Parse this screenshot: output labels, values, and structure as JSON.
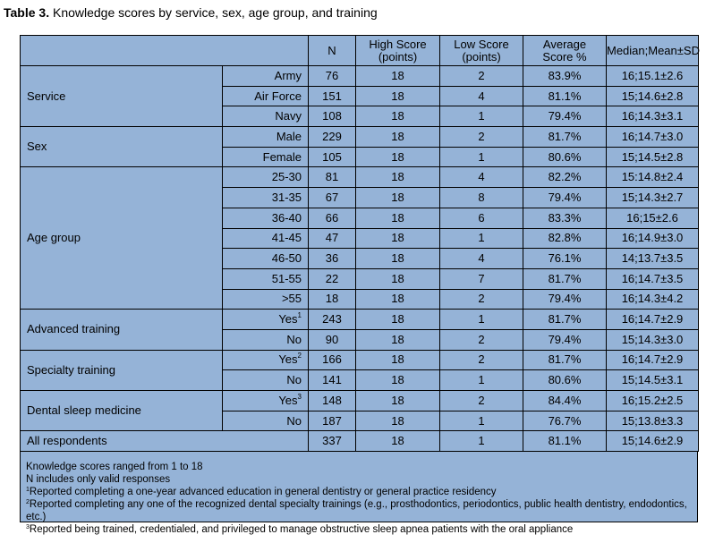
{
  "title": {
    "label": "Table 3.",
    "text": " Knowledge scores by service, sex, age group, and training"
  },
  "headers": {
    "n": "N",
    "high": [
      "High Score",
      "(points)"
    ],
    "low": [
      "Low Score",
      "(points)"
    ],
    "avg": [
      "Average",
      "Score %"
    ],
    "median": "Median;Mean±SD"
  },
  "groups": [
    {
      "name": "Service",
      "rows": [
        {
          "label": "Army",
          "sup": "",
          "n": "76",
          "high": "18",
          "low": "2",
          "avg": "83.9%",
          "median": "16;15.1±2.6"
        },
        {
          "label": "Air Force",
          "sup": "",
          "n": "151",
          "high": "18",
          "low": "4",
          "avg": "81.1%",
          "median": "15;14.6±2.8"
        },
        {
          "label": "Navy",
          "sup": "",
          "n": "108",
          "high": "18",
          "low": "1",
          "avg": "79.4%",
          "median": "16;14.3±3.1"
        }
      ]
    },
    {
      "name": "Sex",
      "rows": [
        {
          "label": "Male",
          "sup": "",
          "n": "229",
          "high": "18",
          "low": "2",
          "avg": "81.7%",
          "median": "16;14.7±3.0"
        },
        {
          "label": "Female",
          "sup": "",
          "n": "105",
          "high": "18",
          "low": "1",
          "avg": "80.6%",
          "median": "15;14.5±2.8"
        }
      ]
    },
    {
      "name": "Age group",
      "rows": [
        {
          "label": "25-30",
          "sup": "",
          "n": "81",
          "high": "18",
          "low": "4",
          "avg": "82.2%",
          "median": "15:14.8±2.4"
        },
        {
          "label": "31-35",
          "sup": "",
          "n": "67",
          "high": "18",
          "low": "8",
          "avg": "79.4%",
          "median": "15;14.3±2.7"
        },
        {
          "label": "36-40",
          "sup": "",
          "n": "66",
          "high": "18",
          "low": "6",
          "avg": "83.3%",
          "median": "16;15±2.6"
        },
        {
          "label": "41-45",
          "sup": "",
          "n": "47",
          "high": "18",
          "low": "1",
          "avg": "82.8%",
          "median": "16;14.9±3.0"
        },
        {
          "label": "46-50",
          "sup": "",
          "n": "36",
          "high": "18",
          "low": "4",
          "avg": "76.1%",
          "median": "14;13.7±3.5"
        },
        {
          "label": "51-55",
          "sup": "",
          "n": "22",
          "high": "18",
          "low": "7",
          "avg": "81.7%",
          "median": "16;14.7±3.5"
        },
        {
          "label": ">55",
          "sup": "",
          "n": "18",
          "high": "18",
          "low": "2",
          "avg": "79.4%",
          "median": "16;14.3±4.2"
        }
      ]
    },
    {
      "name": "Advanced training",
      "rows": [
        {
          "label": "Yes",
          "sup": "1",
          "n": "243",
          "high": "18",
          "low": "1",
          "avg": "81.7%",
          "median": "16;14.7±2.9"
        },
        {
          "label": "No",
          "sup": "",
          "n": "90",
          "high": "18",
          "low": "2",
          "avg": "79.4%",
          "median": "15;14.3±3.0"
        }
      ]
    },
    {
      "name": "Specialty training",
      "rows": [
        {
          "label": "Yes",
          "sup": "2",
          "n": "166",
          "high": "18",
          "low": "2",
          "avg": "81.7%",
          "median": "16;14.7±2.9"
        },
        {
          "label": "No",
          "sup": "",
          "n": "141",
          "high": "18",
          "low": "1",
          "avg": "80.6%",
          "median": "15;14.5±3.1"
        }
      ]
    },
    {
      "name": "Dental sleep medicine",
      "rows": [
        {
          "label": "Yes",
          "sup": "3",
          "n": "148",
          "high": "18",
          "low": "2",
          "avg": "84.4%",
          "median": "16;15.2±2.5"
        },
        {
          "label": "No",
          "sup": "",
          "n": "187",
          "high": "18",
          "low": "1",
          "avg": "76.7%",
          "median": "15;13.8±3.3"
        }
      ]
    }
  ],
  "total": {
    "label": "All respondents",
    "n": "337",
    "high": "18",
    "low": "1",
    "avg": "81.1%",
    "median": "15;14.6±2.9"
  },
  "notes": [
    {
      "sup": "",
      "text": "Knowledge scores ranged from 1 to 18"
    },
    {
      "sup": "",
      "text": "N includes only valid responses"
    },
    {
      "sup": "1",
      "text": "Reported completing a one-year advanced education in general dentistry or general practice residency"
    },
    {
      "sup": "2",
      "text": "Reported completing any one of the recognized dental specialty trainings (e.g., prosthodontics, periodontics, public health dentistry, endodontics, etc.)"
    },
    {
      "sup": "3",
      "text": "Reported being trained, credentialed, and privileged to manage obstructive sleep apnea patients with the oral appliance"
    }
  ]
}
